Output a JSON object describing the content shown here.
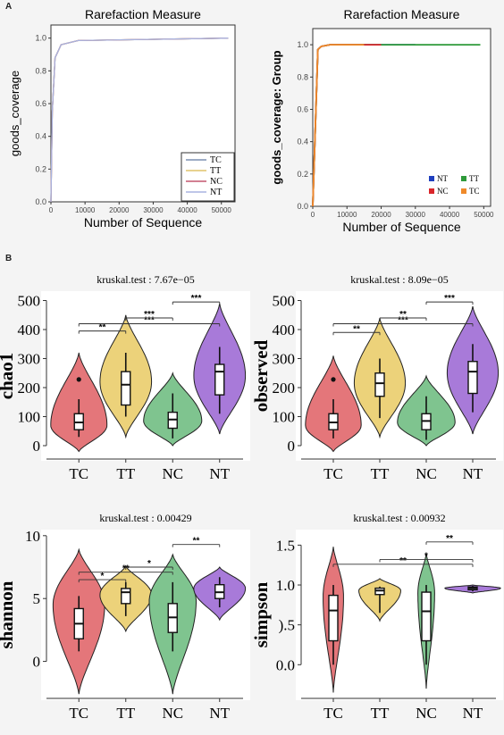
{
  "panel_labels": {
    "a": "A",
    "b": "B"
  },
  "chart_data": [
    {
      "type": "line",
      "title": "Rarefaction Measure",
      "xlabel": "Number of Sequence",
      "ylabel": "goods_coverage",
      "xlim": [
        0,
        54000
      ],
      "ylim": [
        0,
        1.08
      ],
      "xticks": [
        0,
        10000,
        20000,
        30000,
        40000,
        50000
      ],
      "yticks": [
        0.0,
        0.2,
        0.4,
        0.6,
        0.8,
        1.0
      ],
      "legend_position": "bottom-right",
      "series": [
        {
          "name": "TC",
          "color": "#7b8fb0",
          "x": [
            0,
            400,
            1200,
            3000,
            8000,
            52000
          ],
          "y": [
            0,
            0.55,
            0.88,
            0.96,
            0.985,
            1.0
          ]
        },
        {
          "name": "TT",
          "color": "#e0c36a",
          "x": [
            0,
            400,
            1200,
            3000,
            8000,
            52000
          ],
          "y": [
            0,
            0.55,
            0.88,
            0.96,
            0.985,
            1.0
          ]
        },
        {
          "name": "NC",
          "color": "#c4566e",
          "x": [
            0,
            400,
            1200,
            3000,
            8000,
            52000
          ],
          "y": [
            0,
            0.55,
            0.88,
            0.96,
            0.985,
            1.0
          ]
        },
        {
          "name": "NT",
          "color": "#a8b4e0",
          "x": [
            0,
            400,
            1200,
            3000,
            8000,
            52000
          ],
          "y": [
            0,
            0.55,
            0.88,
            0.96,
            0.985,
            1.0
          ]
        }
      ]
    },
    {
      "type": "line",
      "title": "Rarefaction Measure",
      "xlabel": "Number of Sequence",
      "ylabel": "goods_coverage: Group",
      "xlim": [
        0,
        52000
      ],
      "ylim": [
        0,
        1.1
      ],
      "xticks": [
        0,
        10000,
        20000,
        30000,
        40000,
        50000
      ],
      "yticks": [
        0.0,
        0.2,
        0.4,
        0.6,
        0.8,
        1.0
      ],
      "legend_position": "bottom-right",
      "series": [
        {
          "name": "NT",
          "color": "#1f3fbf",
          "x": [
            0,
            1500,
            2500,
            5000,
            30000
          ],
          "y": [
            0,
            0.97,
            0.99,
            1.0,
            1.0
          ]
        },
        {
          "name": "TT",
          "color": "#2e9a3a",
          "x": [
            0,
            1500,
            2500,
            5000,
            30000,
            49000
          ],
          "y": [
            0,
            0.97,
            0.99,
            1.0,
            1.0,
            1.0
          ]
        },
        {
          "name": "NC",
          "color": "#d9262b",
          "x": [
            0,
            1500,
            2500,
            5000,
            20000
          ],
          "y": [
            0,
            0.97,
            0.99,
            1.0,
            1.0
          ]
        },
        {
          "name": "TC",
          "color": "#ef8a2a",
          "x": [
            0,
            1500,
            2500,
            5000,
            15000
          ],
          "y": [
            0,
            0.97,
            0.99,
            1.0,
            1.0
          ]
        }
      ]
    },
    {
      "type": "violin",
      "title": "kruskal.test : 7.67e−05",
      "ylabel": "chao1",
      "categories": [
        "TC",
        "TT",
        "NC",
        "NT"
      ],
      "ylim": [
        -40,
        520
      ],
      "yticks": [
        0,
        100,
        200,
        300,
        400,
        500
      ],
      "box": {
        "TC": {
          "min": 30,
          "q1": 55,
          "median": 80,
          "q3": 110,
          "max": 160,
          "outliers": [
            228
          ]
        },
        "TT": {
          "min": 100,
          "q1": 140,
          "median": 210,
          "q3": 255,
          "max": 320,
          "outliers": []
        },
        "NC": {
          "min": 25,
          "q1": 60,
          "median": 90,
          "q3": 115,
          "max": 180,
          "outliers": []
        },
        "NT": {
          "min": 110,
          "q1": 175,
          "median": 255,
          "q3": 280,
          "max": 340,
          "outliers": []
        }
      },
      "violin": {
        "TC": {
          "min": -20,
          "max": 320,
          "peak": 70,
          "width": 0.6
        },
        "TT": {
          "min": 30,
          "max": 450,
          "peak": 220,
          "width": 0.55
        },
        "NC": {
          "min": 0,
          "max": 250,
          "peak": 85,
          "width": 0.62
        },
        "NT": {
          "min": 40,
          "max": 490,
          "peak": 240,
          "width": 0.55
        }
      },
      "comparisons": [
        {
          "from": "TC",
          "to": "TT",
          "y": 395,
          "label": "**"
        },
        {
          "from": "TC",
          "to": "NT",
          "y": 420,
          "label": "***"
        },
        {
          "from": "TT",
          "to": "NC",
          "y": 440,
          "label": "***"
        },
        {
          "from": "NC",
          "to": "NT",
          "y": 495,
          "label": "***"
        }
      ]
    },
    {
      "type": "violin",
      "title": "kruskal.test : 8.09e−05",
      "ylabel": "observed",
      "categories": [
        "TC",
        "TT",
        "NC",
        "NT"
      ],
      "ylim": [
        -40,
        520
      ],
      "yticks": [
        0,
        100,
        200,
        300,
        400,
        500
      ],
      "box": {
        "TC": {
          "min": 25,
          "q1": 55,
          "median": 80,
          "q3": 110,
          "max": 160,
          "outliers": [
            228
          ]
        },
        "TT": {
          "min": 95,
          "q1": 170,
          "median": 215,
          "q3": 250,
          "max": 300,
          "outliers": []
        },
        "NC": {
          "min": 20,
          "q1": 55,
          "median": 85,
          "q3": 110,
          "max": 170,
          "outliers": []
        },
        "NT": {
          "min": 115,
          "q1": 180,
          "median": 255,
          "q3": 290,
          "max": 350,
          "outliers": []
        }
      },
      "violin": {
        "TC": {
          "min": -20,
          "max": 310,
          "peak": 70,
          "width": 0.6
        },
        "TT": {
          "min": 30,
          "max": 440,
          "peak": 215,
          "width": 0.55
        },
        "NC": {
          "min": 0,
          "max": 240,
          "peak": 80,
          "width": 0.62
        },
        "NT": {
          "min": 40,
          "max": 480,
          "peak": 250,
          "width": 0.55
        }
      },
      "comparisons": [
        {
          "from": "TC",
          "to": "TT",
          "y": 390,
          "label": "**"
        },
        {
          "from": "TC",
          "to": "NT",
          "y": 420,
          "label": "***"
        },
        {
          "from": "TT",
          "to": "NC",
          "y": 440,
          "label": "**"
        },
        {
          "from": "NC",
          "to": "NT",
          "y": 495,
          "label": "***"
        }
      ]
    },
    {
      "type": "violin",
      "title": "kruskal.test : 0.00429",
      "ylabel": "shannon",
      "categories": [
        "TC",
        "TT",
        "NC",
        "NT"
      ],
      "ylim": [
        -2.8,
        10.2
      ],
      "yticks": [
        0,
        5,
        10
      ],
      "box": {
        "TC": {
          "min": 0.8,
          "q1": 1.8,
          "median": 3.0,
          "q3": 4.2,
          "max": 5.2,
          "outliers": []
        },
        "TT": {
          "min": 3.6,
          "q1": 4.6,
          "median": 5.5,
          "q3": 5.8,
          "max": 6.3,
          "outliers": []
        },
        "NC": {
          "min": 0.8,
          "q1": 2.3,
          "median": 3.5,
          "q3": 4.6,
          "max": 6.3,
          "outliers": []
        },
        "NT": {
          "min": 4.3,
          "q1": 5.0,
          "median": 5.5,
          "q3": 6.1,
          "max": 6.7,
          "outliers": []
        }
      },
      "violin": {
        "TC": {
          "min": -2.6,
          "max": 8.9,
          "peak": 4.5,
          "width": 0.55
        },
        "TT": {
          "min": 2.4,
          "max": 7.6,
          "peak": 5.3,
          "width": 0.55
        },
        "NC": {
          "min": -2.6,
          "max": 8.5,
          "peak": 4.8,
          "width": 0.5
        },
        "NT": {
          "min": 3.3,
          "max": 7.5,
          "peak": 5.8,
          "width": 0.55
        }
      },
      "comparisons": [
        {
          "from": "TC",
          "to": "TT",
          "y": 6.5,
          "label": "*"
        },
        {
          "from": "TC",
          "to": "NC",
          "y": 7.1,
          "label": "**"
        },
        {
          "from": "TT",
          "to": "NC",
          "y": 7.5,
          "label": "*"
        },
        {
          "from": "NC",
          "to": "NT",
          "y": 9.3,
          "label": "**"
        }
      ]
    },
    {
      "type": "violin",
      "title": "kruskal.test : 0.00932",
      "ylabel": "simpson",
      "categories": [
        "TC",
        "TT",
        "NC",
        "NT"
      ],
      "ylim": [
        -0.4,
        1.65
      ],
      "yticks": [
        0.0,
        0.5,
        1.0,
        1.5
      ],
      "ytick_labels": [
        "0.0",
        ").5",
        "1.0",
        "1.5"
      ],
      "box": {
        "TC": {
          "min": 0.0,
          "q1": 0.3,
          "median": 0.68,
          "q3": 0.87,
          "max": 1.0,
          "outliers": []
        },
        "TT": {
          "min": 0.65,
          "q1": 0.88,
          "median": 0.93,
          "q3": 0.96,
          "max": 0.98,
          "outliers": []
        },
        "NC": {
          "min": 0.0,
          "q1": 0.3,
          "median": 0.67,
          "q3": 0.91,
          "max": 1.0,
          "outliers": []
        },
        "NT": {
          "min": 0.92,
          "q1": 0.94,
          "median": 0.96,
          "q3": 0.975,
          "max": 0.99,
          "outliers": []
        }
      },
      "violin": {
        "TC": {
          "min": -0.35,
          "max": 1.48,
          "peak": 0.85,
          "width": 0.22
        },
        "TT": {
          "min": 0.55,
          "max": 1.08,
          "peak": 0.93,
          "width": 0.45
        },
        "NC": {
          "min": -0.3,
          "max": 1.4,
          "peak": 0.9,
          "width": 0.18
        },
        "NT": {
          "min": 0.9,
          "max": 1.0,
          "peak": 0.96,
          "width": 0.6
        }
      },
      "comparisons": [
        {
          "from": "TC",
          "to": "NT",
          "y": 1.26,
          "label": "**"
        },
        {
          "from": "TT",
          "to": "NT",
          "y": 1.32,
          "label": "*"
        },
        {
          "from": "NC",
          "to": "NT",
          "y": 1.54,
          "label": "**"
        }
      ]
    }
  ],
  "violin_colors": {
    "TC": "#e4767a",
    "TT": "#ecd27a",
    "NC": "#7fc48f",
    "NT": "#a87ad9"
  }
}
